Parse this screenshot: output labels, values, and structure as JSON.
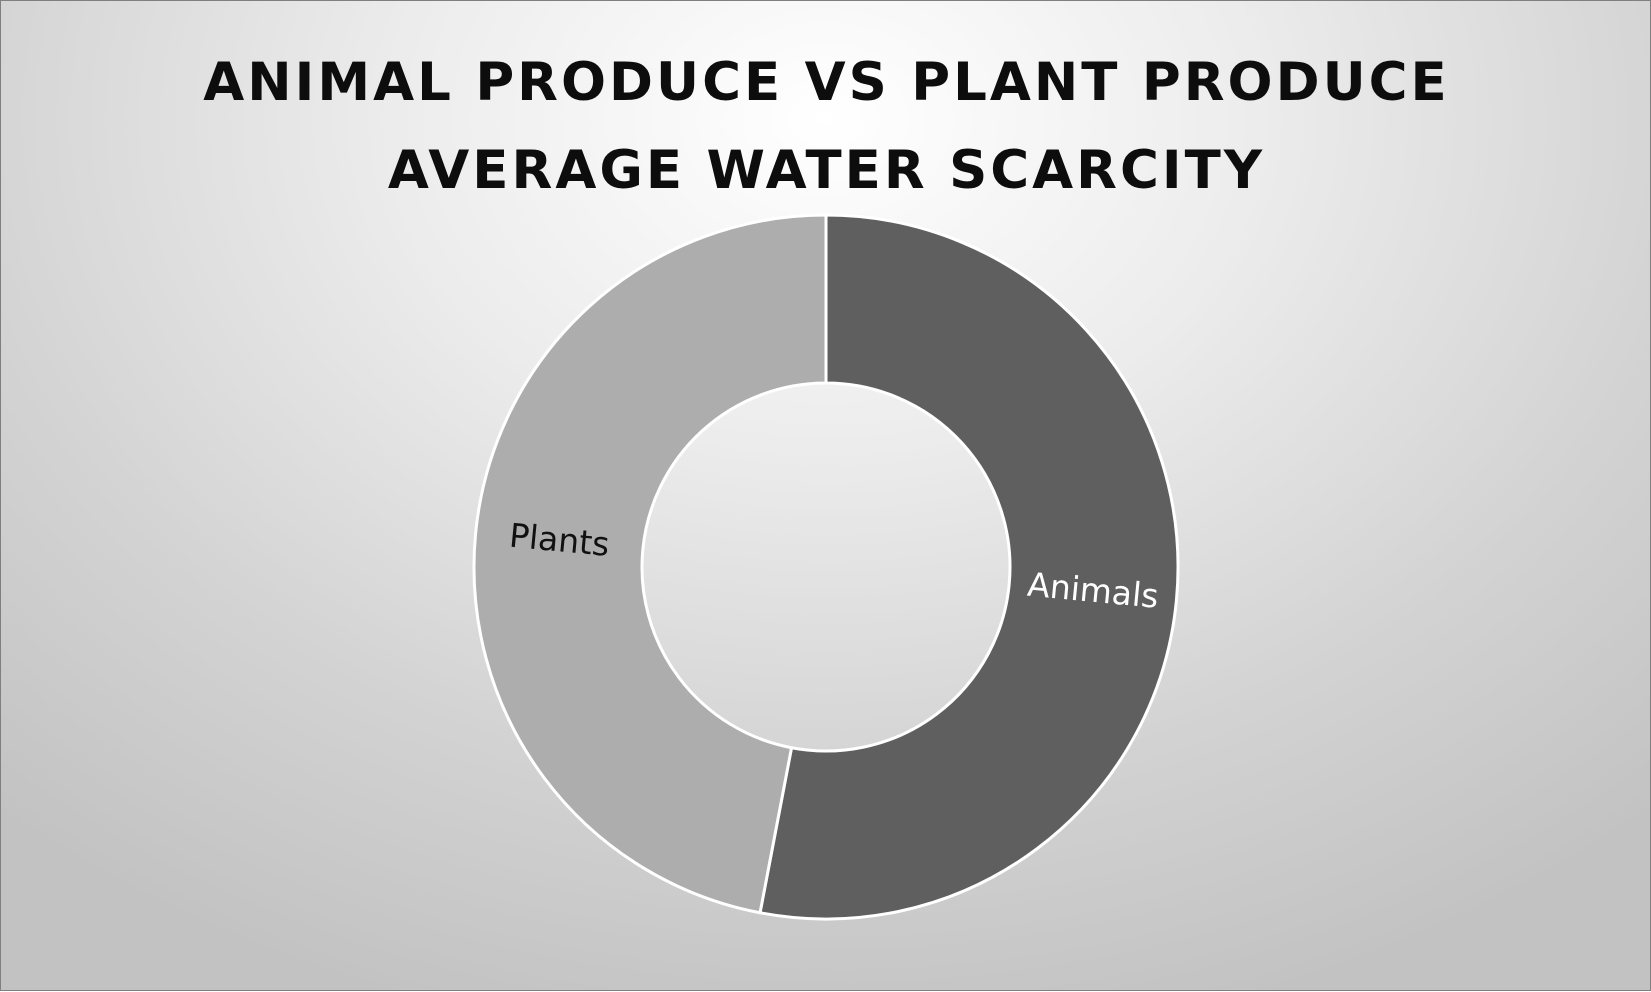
{
  "chart_data": {
    "type": "pie",
    "title": "ANIMAL PRODUCE VS PLANT PRODUCE AVERAGE WATER SCARCITY",
    "title_lines": [
      "ANIMAL PRODUCE VS PLANT PRODUCE",
      "AVERAGE WATER SCARCITY"
    ],
    "hole": "donut",
    "categories": [
      "Animals",
      "Plants"
    ],
    "values": [
      0.53,
      0.47
    ],
    "labels": [
      "Animals",
      "Plants"
    ],
    "colors": [
      "#5f5f5f",
      "#adadad"
    ],
    "label_colors": [
      "#ffffff",
      "#111111"
    ],
    "separator_color": "#ffffff",
    "legend": "none"
  }
}
